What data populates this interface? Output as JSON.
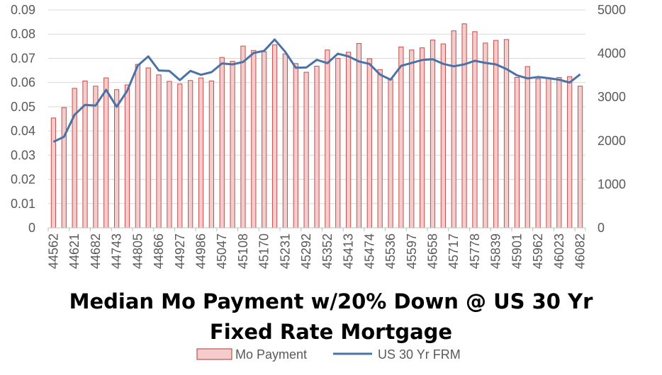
{
  "chart_data": {
    "type": "bar",
    "title_lines": [
      "Median Mo Payment w/20% Down @ US 30 Yr",
      "Fixed Rate Mortgage"
    ],
    "y_left": {
      "ticks": [
        "0",
        "0.01",
        "0.02",
        "0.03",
        "0.04",
        "0.05",
        "0.06",
        "0.07",
        "0.08",
        "0.09"
      ],
      "min": 0,
      "max": 0.09
    },
    "y_right": {
      "ticks": [
        "0",
        "1000",
        "2000",
        "3000",
        "4000",
        "5000"
      ],
      "min": 0,
      "max": 5000
    },
    "x_tick_labels": [
      "44562",
      "44621",
      "44682",
      "44743",
      "44805",
      "44866",
      "44927",
      "44986",
      "45047",
      "45108",
      "45170",
      "45231",
      "45292",
      "45352",
      "45413",
      "45474",
      "45536",
      "45597",
      "45658",
      "45717",
      "45778",
      "45839",
      "45901",
      "45962",
      "46023",
      "46082"
    ],
    "x": [
      "44562",
      "44593",
      "44621",
      "44652",
      "44682",
      "44713",
      "44743",
      "44774",
      "44805",
      "44835",
      "44866",
      "44896",
      "44927",
      "44958",
      "44986",
      "45017",
      "45047",
      "45078",
      "45108",
      "45139",
      "45170",
      "45200",
      "45231",
      "45261",
      "45292",
      "45323",
      "45352",
      "45383",
      "45413",
      "45444",
      "45474",
      "45505",
      "45536",
      "45566",
      "45597",
      "45627",
      "45658",
      "45689",
      "45717",
      "45748",
      "45778",
      "45809",
      "45839",
      "45870",
      "45901",
      "45931",
      "45962",
      "45992",
      "46023",
      "46054",
      "46082"
    ],
    "series": [
      {
        "name": "Mo Payment",
        "kind": "bar",
        "axis": "right",
        "color": "#c0504d",
        "fill": "#f4cccc",
        "values": [
          2520,
          2760,
          3200,
          3370,
          3250,
          3440,
          3170,
          3280,
          3750,
          3670,
          3510,
          3360,
          3300,
          3380,
          3440,
          3370,
          3910,
          3820,
          4170,
          4070,
          4040,
          4200,
          3990,
          3770,
          3570,
          3710,
          4080,
          3890,
          4030,
          4230,
          3880,
          3630,
          3410,
          4150,
          4080,
          4130,
          4310,
          4220,
          4520,
          4680,
          4500,
          4240,
          4300,
          4320,
          3450,
          3700,
          3420,
          3440,
          3450,
          3470,
          3250
        ]
      },
      {
        "name": "US 30 Yr FRM",
        "kind": "line",
        "axis": "left",
        "color": "#4a72a8",
        "values": [
          0.0355,
          0.0376,
          0.0467,
          0.0508,
          0.0505,
          0.057,
          0.05,
          0.0566,
          0.067,
          0.0708,
          0.065,
          0.0648,
          0.061,
          0.0648,
          0.0632,
          0.0643,
          0.0679,
          0.0675,
          0.0685,
          0.0722,
          0.0731,
          0.0778,
          0.0727,
          0.0661,
          0.0662,
          0.0694,
          0.068,
          0.0719,
          0.0708,
          0.0687,
          0.0677,
          0.0633,
          0.0612,
          0.0669,
          0.0681,
          0.0693,
          0.0696,
          0.0677,
          0.0667,
          0.0675,
          0.069,
          0.0681,
          0.0675,
          0.0656,
          0.063,
          0.0617,
          0.0623,
          0.0618,
          0.0612,
          0.06,
          0.0634
        ]
      }
    ],
    "legend": [
      {
        "label": "Mo Payment",
        "kind": "bar",
        "color": "#c0504d",
        "fill": "#f4cccc"
      },
      {
        "label": "US 30 Yr FRM",
        "kind": "line",
        "color": "#4a72a8"
      }
    ],
    "gridlines": true,
    "legend_position": "bottom"
  }
}
